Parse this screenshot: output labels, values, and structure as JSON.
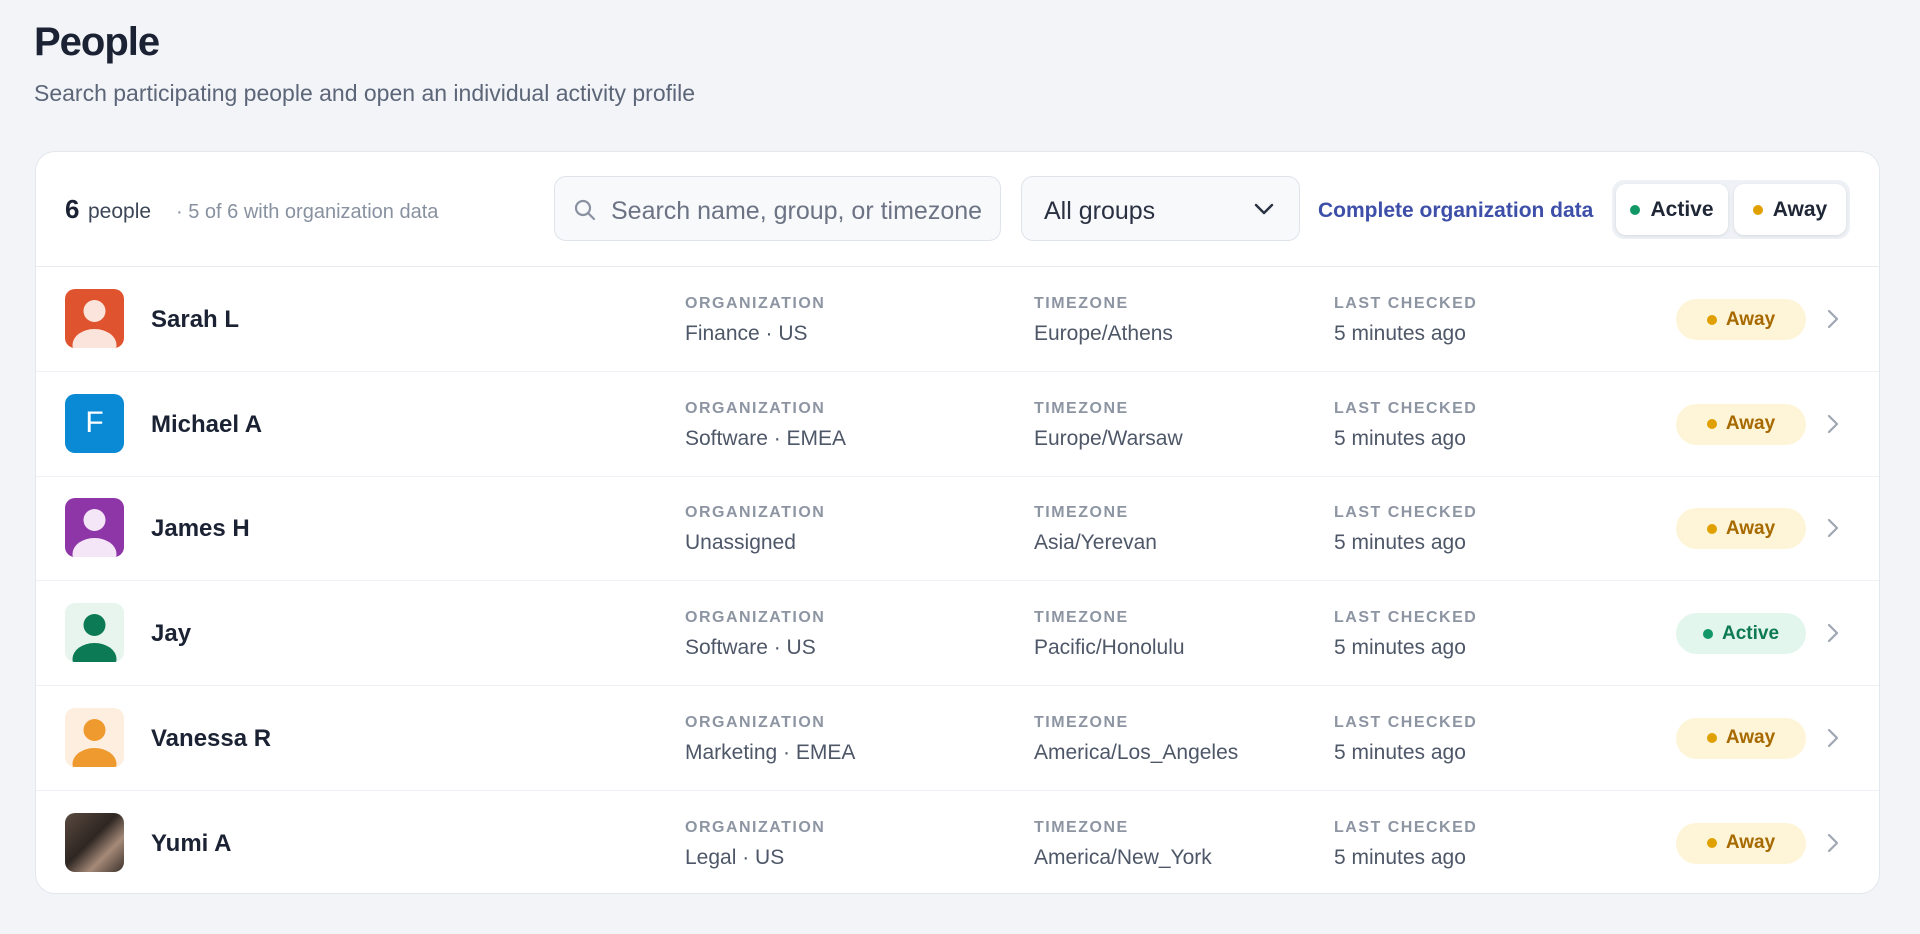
{
  "header": {
    "title": "People",
    "subtitle": "Search participating people and open an individual activity profile"
  },
  "toolbar": {
    "count": "6",
    "count_label": "people",
    "org_note": "· 5 of 6 with organization data",
    "search_placeholder": "Search name, group, or timezone",
    "group_select": "All groups",
    "link": "Complete organization data",
    "filters": [
      "Active",
      "Away"
    ]
  },
  "labels": {
    "organization": "ORGANIZATION",
    "timezone": "TIMEZONE",
    "last_checked": "LAST CHECKED"
  },
  "rows": [
    {
      "name": "Sarah L",
      "organization": "Finance · US",
      "timezone": "Europe/Athens",
      "last_checked": "5 minutes ago",
      "status": "Away"
    },
    {
      "name": "Michael A",
      "avatar_text": "F",
      "organization": "Software · EMEA",
      "timezone": "Europe/Warsaw",
      "last_checked": "5 minutes ago",
      "status": "Away"
    },
    {
      "name": "James H",
      "organization": "Unassigned",
      "timezone": "Asia/Yerevan",
      "last_checked": "5 minutes ago",
      "status": "Away"
    },
    {
      "name": "Jay",
      "organization": "Software · US",
      "timezone": "Pacific/Honolulu",
      "last_checked": "5 minutes ago",
      "status": "Active"
    },
    {
      "name": "Vanessa R",
      "organization": "Marketing · EMEA",
      "timezone": "America/Los_Angeles",
      "last_checked": "5 minutes ago",
      "status": "Away"
    },
    {
      "name": "Yumi A",
      "organization": "Legal · US",
      "timezone": "America/New_York",
      "last_checked": "5 minutes ago",
      "status": "Away"
    }
  ]
}
